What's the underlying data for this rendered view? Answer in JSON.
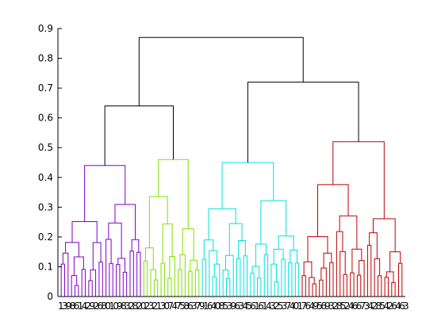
{
  "chart_data": {
    "type": "dendrogram",
    "title": "",
    "xlabel": "",
    "ylabel": "",
    "ylim": [
      0,
      0.9
    ],
    "y_ticks": [
      "0",
      "0.1",
      "0.2",
      "0.3",
      "0.4",
      "0.5",
      "0.6",
      "0.7",
      "0.8",
      "0.9"
    ],
    "grid": false,
    "leaf_count": 100,
    "leaf_labels_text": "13986142926801098328202321307475863791640853963456161432537401764956932852466734285426463",
    "clusters": [
      {
        "name": "",
        "color": "#7f00c8",
        "merge_height": 0.44,
        "leaf_range": [
          0,
          24
        ]
      },
      {
        "name": "",
        "color": "#80e000",
        "merge_height": 0.46,
        "leaf_range": [
          24,
          41
        ]
      },
      {
        "name": "",
        "color": "#00e0e0",
        "merge_height": 0.45,
        "leaf_range": [
          41,
          70
        ]
      },
      {
        "name": "",
        "color": "#c00000",
        "merge_height": 0.52,
        "leaf_range": [
          70,
          100
        ]
      }
    ],
    "upper_links": [
      {
        "children": [
          "purple",
          "green"
        ],
        "height": 0.64,
        "color": "#000000"
      },
      {
        "children": [
          "cyan",
          "red"
        ],
        "height": 0.72,
        "color": "#000000"
      },
      {
        "children": [
          "left-group",
          "right-group"
        ],
        "height": 0.87,
        "color": "#000000"
      }
    ]
  }
}
